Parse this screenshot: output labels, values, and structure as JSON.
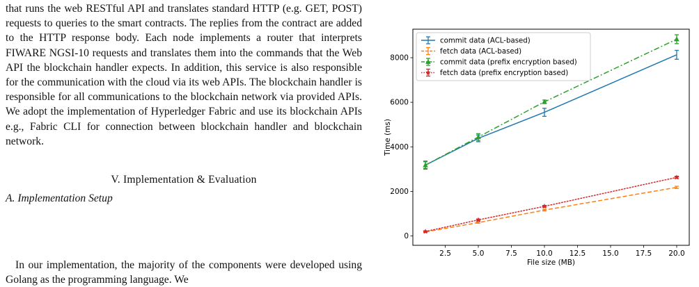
{
  "text_column": {
    "paragraph_1": "that runs the web RESTful API and translates standard HTTP (e.g. GET, POST) requests to queries to the smart contracts. The replies from the contract are added to the HTTP response body. Each node implements a router that interprets FIWARE NGSI-10 requests and translates them into the commands that the Web API the blockchain handler expects. In addition, this service is also responsible for the communication with the cloud via its web APIs. The blockchain handler is responsible for all communications to the blockchain network via provided APIs. We adopt the implementation of Hyperledger Fabric and use its blockchain APIs e.g., Fabric CLI for connection between blockchain handler and blockchain network.",
    "section_heading": "V. Implementation & Evaluation",
    "subsection_heading": "A. Implementation Setup",
    "paragraph_2": "In our implementation, the majority of the components were developed using Golang as the programming language. We"
  },
  "chart_data": {
    "type": "line",
    "title": "",
    "xlabel": "File size (MB)",
    "ylabel": "Time (ms)",
    "xlim": [
      0.05,
      20.95
    ],
    "ylim": [
      -420,
      9280
    ],
    "xticks": [
      2.5,
      5.0,
      7.5,
      10.0,
      12.5,
      15.0,
      17.5,
      20.0
    ],
    "xtick_labels": [
      "2.5",
      "5.0",
      "7.5",
      "10.0",
      "12.5",
      "15.0",
      "17.5",
      "20.0"
    ],
    "yticks": [
      0,
      2000,
      4000,
      6000,
      8000
    ],
    "ytick_labels": [
      "0",
      "2000",
      "4000",
      "6000",
      "8000"
    ],
    "grid": false,
    "legend_position": "top-left",
    "x": [
      1,
      5,
      10,
      20
    ],
    "series": [
      {
        "name": "commit data (ACL-based)",
        "values": [
          3180,
          4380,
          5550,
          8130
        ],
        "errors": [
          180,
          150,
          180,
          200
        ],
        "color": "#1f77b4",
        "dash": "solid",
        "marker": "none"
      },
      {
        "name": "fetch data (ACL-based)",
        "values": [
          180,
          600,
          1160,
          2180
        ],
        "errors": [
          30,
          30,
          40,
          50
        ],
        "color": "#ff7f0e",
        "dash": "dashed",
        "marker": "none"
      },
      {
        "name": "commit data (prefix encryption based)",
        "values": [
          3180,
          4440,
          6020,
          8830
        ],
        "errors": [
          150,
          150,
          80,
          200
        ],
        "color": "#2ca02c",
        "dash": "dashdot",
        "marker": "triangle"
      },
      {
        "name": "fetch data (prefix encryption based)",
        "values": [
          200,
          720,
          1330,
          2630
        ],
        "errors": [
          30,
          40,
          40,
          50
        ],
        "color": "#d62728",
        "dash": "dotted",
        "marker": "star"
      }
    ]
  }
}
